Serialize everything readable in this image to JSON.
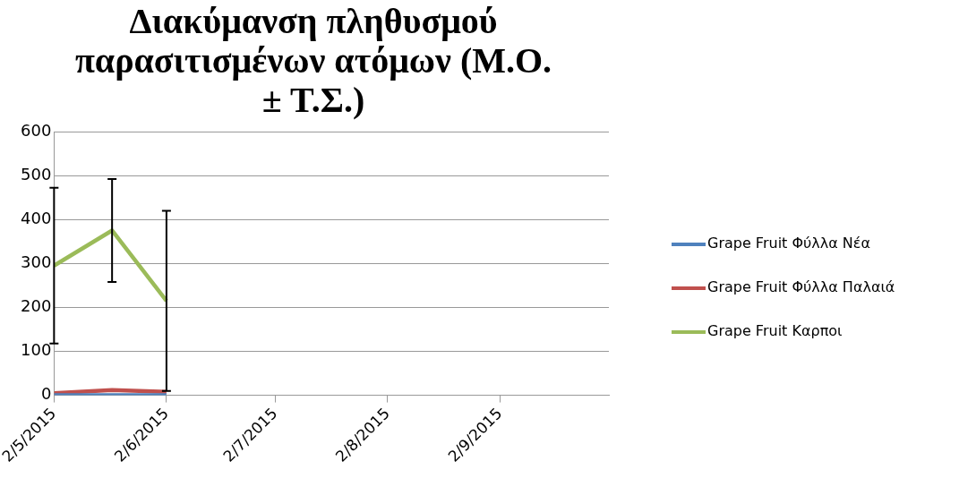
{
  "chart_data": {
    "type": "line",
    "title": "Διακύμανση πληθυσμού παρασιτισμένων ατόμων (Μ.Ο. ± Τ.Σ.)",
    "x": [
      "2015-05-02",
      "2015-05-18",
      "2015-06-02"
    ],
    "series": [
      {
        "name": "Grape Fruit Φύλλα Νέα",
        "color": "#4f81bd",
        "values": [
          0,
          0,
          0
        ]
      },
      {
        "name": "Grape Fruit Φύλλα Παλαιά",
        "color": "#c0504d",
        "values": [
          5,
          12,
          8
        ]
      },
      {
        "name": "Grape Fruit Καρποι",
        "color": "#9bbb59",
        "values": [
          295,
          375,
          215
        ],
        "errors": [
          177,
          117,
          205
        ]
      }
    ],
    "xlim": [
      "2015-05-02",
      "2015-10-02"
    ],
    "xticks": [
      {
        "value": "2015-05-02",
        "label": "2/5/2015"
      },
      {
        "value": "2015-06-02",
        "label": "2/6/2015"
      },
      {
        "value": "2015-07-02",
        "label": "2/7/2015"
      },
      {
        "value": "2015-08-02",
        "label": "2/8/2015"
      },
      {
        "value": "2015-09-02",
        "label": "2/9/2015"
      }
    ],
    "ylim": [
      0,
      600
    ],
    "yticks": [
      0,
      100,
      200,
      300,
      400,
      500,
      600
    ],
    "grid": "y",
    "legend": "right",
    "marker": "none",
    "line_style": "solid"
  }
}
